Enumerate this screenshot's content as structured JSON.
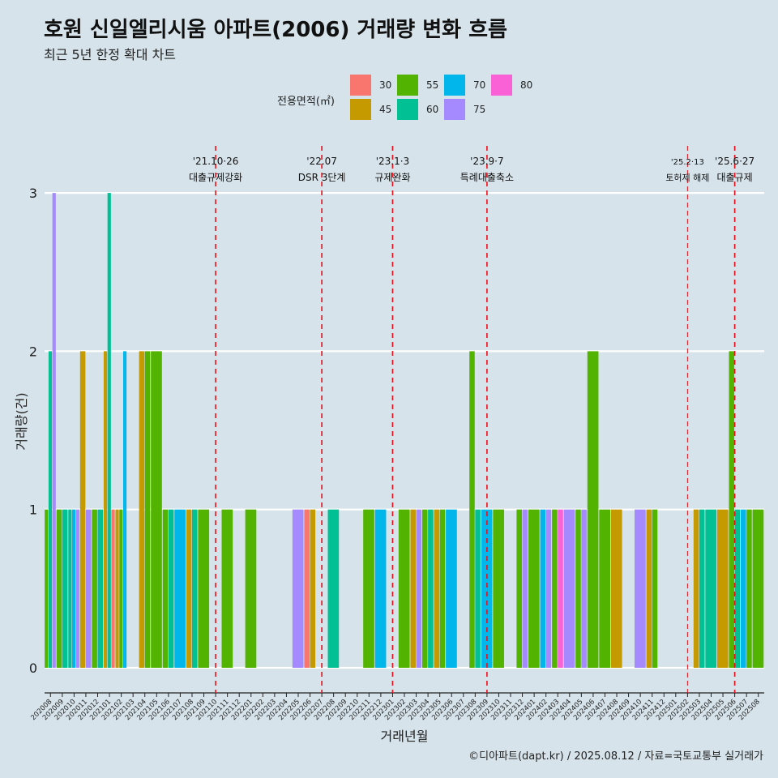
{
  "title": "호원 신일엘리시움 아파트(2006) 거래량 변화 흐름",
  "subtitle": "최근 5년 한정 확대 차트",
  "caption": "©디아파트(dapt.kr) / 2025.08.12 / 자료=국토교통부 실거래가",
  "legend": {
    "title": "전용면적(㎡)",
    "items": [
      {
        "label": "30",
        "color": "#F8766D"
      },
      {
        "label": "45",
        "color": "#C49A00"
      },
      {
        "label": "55",
        "color": "#53B400"
      },
      {
        "label": "60",
        "color": "#00C094"
      },
      {
        "label": "70",
        "color": "#00B6EB"
      },
      {
        "label": "75",
        "color": "#A58AFF"
      },
      {
        "label": "80",
        "color": "#FB61D7"
      }
    ]
  },
  "chart_data": {
    "type": "bar",
    "stacking": "dodge",
    "xlabel": "거래년월",
    "ylabel": "거래량(건)",
    "ylim": [
      0,
      3
    ],
    "yticks": [
      0,
      1,
      2,
      3
    ],
    "grid": "horizontal",
    "categories": [
      "202008",
      "202009",
      "202010",
      "202011",
      "202012",
      "202101",
      "202102",
      "202103",
      "202104",
      "202105",
      "202106",
      "202107",
      "202108",
      "202109",
      "202110",
      "202111",
      "202112",
      "202201",
      "202202",
      "202203",
      "202204",
      "202205",
      "202206",
      "202207",
      "202208",
      "202209",
      "202210",
      "202211",
      "202212",
      "202301",
      "202302",
      "202303",
      "202304",
      "202305",
      "202306",
      "202307",
      "202308",
      "202309",
      "202310",
      "202311",
      "202312",
      "202401",
      "202402",
      "202403",
      "202404",
      "202405",
      "202406",
      "202407",
      "202408",
      "202409",
      "202410",
      "202411",
      "202412",
      "202501",
      "202502",
      "202503",
      "202504",
      "202505",
      "202506",
      "202507",
      "202508"
    ],
    "bars": [
      {
        "month": "202008",
        "values": [
          [
            "55",
            1
          ],
          [
            "60",
            2
          ],
          [
            "75",
            3
          ]
        ]
      },
      {
        "month": "202009",
        "values": [
          [
            "55",
            1
          ],
          [
            "60",
            1
          ]
        ]
      },
      {
        "month": "202010",
        "values": [
          [
            "60",
            1
          ],
          [
            "70",
            1
          ],
          [
            "75",
            1
          ]
        ]
      },
      {
        "month": "202011",
        "values": [
          [
            "45",
            2
          ],
          [
            "75",
            1
          ]
        ]
      },
      {
        "month": "202012",
        "values": [
          [
            "55",
            1
          ],
          [
            "60",
            1
          ]
        ]
      },
      {
        "month": "202101",
        "values": [
          [
            "45",
            2
          ],
          [
            "60",
            3
          ],
          [
            "30",
            1
          ]
        ]
      },
      {
        "month": "202102",
        "values": [
          [
            "45",
            1
          ],
          [
            "55",
            1
          ],
          [
            "70",
            2
          ]
        ]
      },
      {
        "month": "202104",
        "values": [
          [
            "45",
            2
          ],
          [
            "55",
            2
          ]
        ]
      },
      {
        "month": "202105",
        "values": [
          [
            "55",
            2
          ]
        ]
      },
      {
        "month": "202106",
        "values": [
          [
            "55",
            1
          ],
          [
            "60",
            1
          ]
        ]
      },
      {
        "month": "202107",
        "values": [
          [
            "70",
            1
          ]
        ]
      },
      {
        "month": "202108",
        "values": [
          [
            "45",
            1
          ],
          [
            "60",
            1
          ]
        ]
      },
      {
        "month": "202109",
        "values": [
          [
            "55",
            1
          ]
        ]
      },
      {
        "month": "202111",
        "values": [
          [
            "55",
            1
          ]
        ]
      },
      {
        "month": "202201",
        "values": [
          [
            "55",
            1
          ]
        ]
      },
      {
        "month": "202205",
        "values": [
          [
            "75",
            1
          ]
        ]
      },
      {
        "month": "202206",
        "values": [
          [
            "30",
            1
          ],
          [
            "45",
            1
          ]
        ]
      },
      {
        "month": "202208",
        "values": [
          [
            "60",
            1
          ]
        ]
      },
      {
        "month": "202211",
        "values": [
          [
            "55",
            1
          ]
        ]
      },
      {
        "month": "202212",
        "values": [
          [
            "70",
            1
          ]
        ]
      },
      {
        "month": "202302",
        "values": [
          [
            "55",
            1
          ]
        ]
      },
      {
        "month": "202303",
        "values": [
          [
            "45",
            1
          ],
          [
            "75",
            1
          ]
        ]
      },
      {
        "month": "202304",
        "values": [
          [
            "55",
            1
          ],
          [
            "60",
            1
          ]
        ]
      },
      {
        "month": "202305",
        "values": [
          [
            "45",
            1
          ],
          [
            "55",
            1
          ]
        ]
      },
      {
        "month": "202306",
        "values": [
          [
            "70",
            1
          ]
        ]
      },
      {
        "month": "202308",
        "values": [
          [
            "55",
            2
          ],
          [
            "60",
            1
          ]
        ]
      },
      {
        "month": "202309",
        "values": [
          [
            "70",
            1
          ]
        ]
      },
      {
        "month": "202310",
        "values": [
          [
            "55",
            1
          ]
        ]
      },
      {
        "month": "202312",
        "values": [
          [
            "55",
            1
          ],
          [
            "75",
            1
          ]
        ]
      },
      {
        "month": "202401",
        "values": [
          [
            "55",
            1
          ]
        ]
      },
      {
        "month": "202402",
        "values": [
          [
            "70",
            1
          ],
          [
            "75",
            1
          ]
        ]
      },
      {
        "month": "202403",
        "values": [
          [
            "55",
            1
          ],
          [
            "80",
            1
          ]
        ]
      },
      {
        "month": "202404",
        "values": [
          [
            "75",
            1
          ]
        ]
      },
      {
        "month": "202405",
        "values": [
          [
            "55",
            1
          ],
          [
            "75",
            1
          ]
        ]
      },
      {
        "month": "202406",
        "values": [
          [
            "55",
            2
          ]
        ]
      },
      {
        "month": "202407",
        "values": [
          [
            "55",
            1
          ]
        ]
      },
      {
        "month": "202408",
        "values": [
          [
            "45",
            1
          ]
        ]
      },
      {
        "month": "202410",
        "values": [
          [
            "75",
            1
          ]
        ]
      },
      {
        "month": "202411",
        "values": [
          [
            "45",
            1
          ],
          [
            "55",
            1
          ]
        ]
      },
      {
        "month": "202503",
        "values": [
          [
            "45",
            1
          ],
          [
            "60",
            1
          ]
        ]
      },
      {
        "month": "202504",
        "values": [
          [
            "60",
            1
          ]
        ]
      },
      {
        "month": "202505",
        "values": [
          [
            "45",
            1
          ]
        ]
      },
      {
        "month": "202506",
        "values": [
          [
            "55",
            2
          ],
          [
            "60",
            1
          ]
        ]
      },
      {
        "month": "202507",
        "values": [
          [
            "70",
            1
          ],
          [
            "55",
            1
          ]
        ]
      },
      {
        "month": "202508",
        "values": [
          [
            "55",
            1
          ]
        ]
      }
    ],
    "annotations": [
      {
        "x": "202110",
        "label1": "'21.10·26",
        "label2": "대출규제강화",
        "style": "dashed"
      },
      {
        "x": "202207",
        "label1": "'22.07",
        "label2": "DSR 3단계",
        "style": "dashed"
      },
      {
        "x": "202301",
        "label1": "'23.1·3",
        "label2": "규제완화",
        "style": "dashed"
      },
      {
        "x": "202309",
        "label1": "'23.9·7",
        "label2": "특례대출축소",
        "style": "dashed"
      },
      {
        "x": "202502",
        "label1": "'25.2·13",
        "label2": "토허제 해제",
        "style": "thin"
      },
      {
        "x": "202506",
        "label1": "'25.6·27",
        "label2": "대출규제",
        "style": "dashed"
      }
    ]
  }
}
